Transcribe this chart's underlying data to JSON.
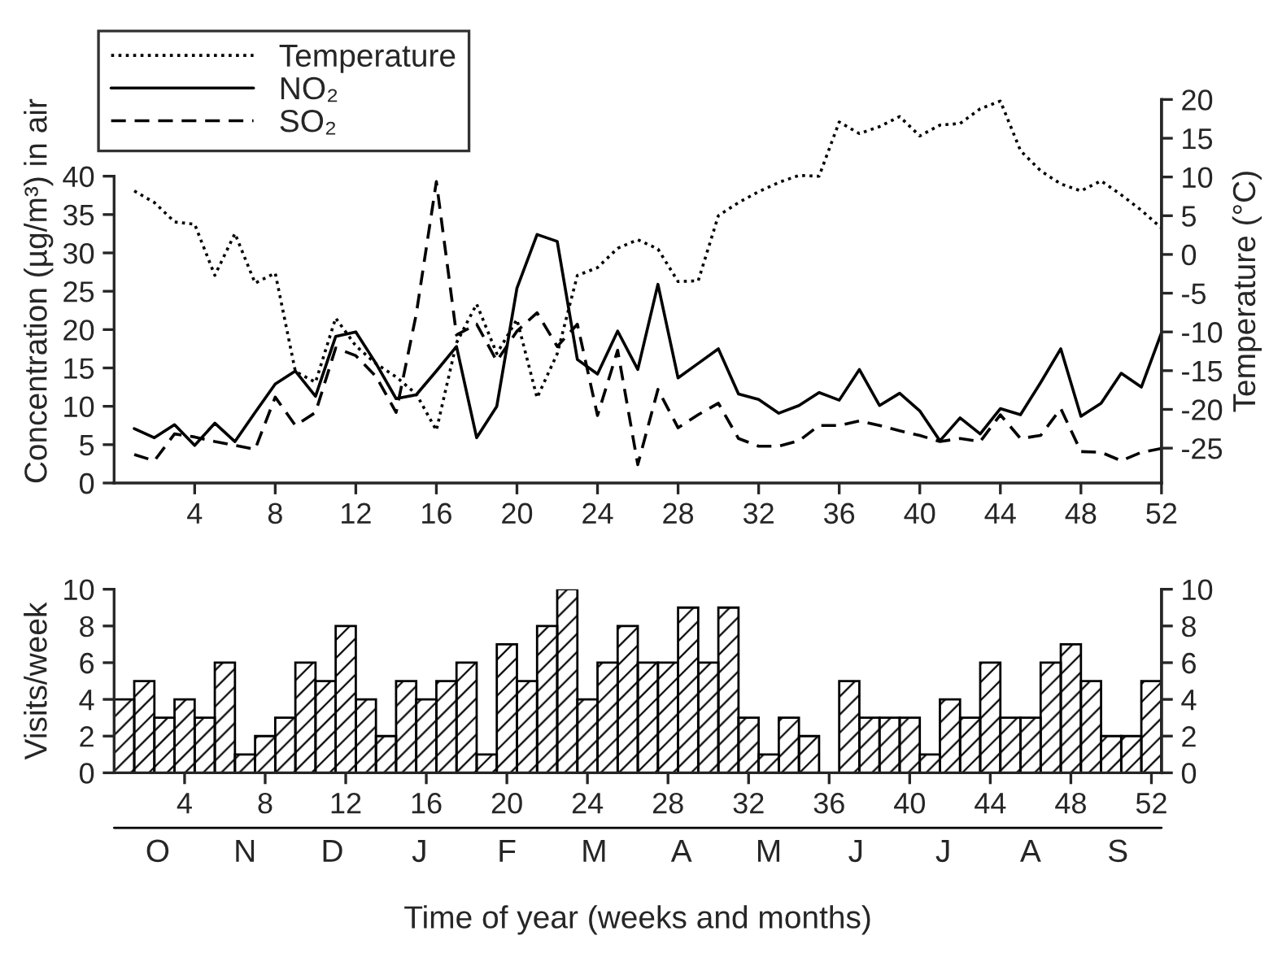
{
  "chart_data": [
    {
      "type": "line",
      "ylabel": "Concentration (µg/m³) in air",
      "y2label": "Temperature (°C)",
      "x": [
        1,
        2,
        3,
        4,
        5,
        6,
        7,
        8,
        9,
        10,
        11,
        12,
        13,
        14,
        15,
        16,
        17,
        18,
        19,
        20,
        21,
        22,
        23,
        24,
        25,
        26,
        27,
        28,
        29,
        30,
        31,
        32,
        33,
        34,
        35,
        36,
        37,
        38,
        39,
        40,
        41,
        42,
        43,
        44,
        45,
        46,
        47,
        48,
        49,
        50,
        51,
        52
      ],
      "series": [
        {
          "name": "Temperature",
          "color": "#000000",
          "axis": "y2",
          "line_style": "dotted",
          "values": [
            8.2,
            6.7,
            4.2,
            3.9,
            -2.7,
            2.7,
            -3.7,
            -2.4,
            -15.1,
            -16.5,
            -8.2,
            -11.8,
            -14.1,
            -15.8,
            -18.0,
            -22.7,
            -11.4,
            -6.4,
            -12.8,
            -8.4,
            -18.5,
            -12.8,
            -2.7,
            -1.7,
            0.8,
            1.9,
            0.7,
            -3.5,
            -3.4,
            5.0,
            6.7,
            8.1,
            9.3,
            10.2,
            10.1,
            17.1,
            15.6,
            16.5,
            17.8,
            15.3,
            16.7,
            16.9,
            18.8,
            19.8,
            13.4,
            10.8,
            9.1,
            8.2,
            9.5,
            7.7,
            5.7,
            3.4
          ]
        },
        {
          "name": "NO₂",
          "color": "#000000",
          "line_style": "solid",
          "values": [
            7.1,
            5.9,
            7.6,
            4.9,
            7.8,
            5.4,
            9.2,
            12.9,
            14.6,
            11.3,
            19.1,
            19.7,
            15.6,
            11.0,
            11.5,
            14.6,
            17.8,
            5.9,
            10.0,
            25.4,
            32.4,
            31.5,
            16.1,
            14.2,
            19.8,
            14.8,
            25.9,
            13.7,
            15.6,
            17.5,
            11.6,
            10.9,
            9.1,
            10.1,
            11.8,
            10.8,
            14.8,
            10.1,
            11.7,
            9.4,
            5.5,
            8.5,
            6.4,
            9.7,
            8.9,
            13.1,
            17.5,
            8.7,
            10.4,
            14.3,
            12.5,
            19.6
          ]
        },
        {
          "name": "SO₂",
          "color": "#000000",
          "line_style": "dashed",
          "values": [
            3.7,
            2.9,
            6.4,
            6.0,
            5.4,
            4.9,
            4.4,
            11.2,
            7.5,
            9.2,
            17.6,
            16.6,
            13.9,
            9.2,
            22.0,
            39.3,
            19.3,
            20.7,
            15.9,
            19.8,
            22.2,
            17.8,
            20.7,
            8.8,
            17.3,
            2.4,
            12.2,
            7.2,
            8.9,
            10.4,
            5.8,
            4.8,
            4.8,
            5.5,
            7.5,
            7.5,
            8.1,
            7.5,
            6.8,
            6.2,
            5.4,
            5.8,
            5.4,
            8.9,
            5.8,
            6.2,
            9.7,
            4.1,
            4.0,
            2.9,
            4.0,
            4.5
          ]
        }
      ],
      "xlim": [
        0,
        52
      ],
      "xticks": [
        4,
        8,
        12,
        16,
        20,
        24,
        28,
        32,
        36,
        40,
        44,
        48,
        52
      ],
      "ylim": [
        0,
        50
      ],
      "yticks": [
        0,
        5,
        10,
        15,
        20,
        25,
        30,
        35,
        40
      ],
      "y2lim": [
        -29.5,
        20
      ],
      "y2ticks": [
        -25,
        -20,
        -15,
        -10,
        -5,
        0,
        5,
        10,
        15,
        20
      ],
      "legend": "top left",
      "grid": false,
      "marker": "none"
    },
    {
      "type": "bar",
      "ylabel": "Visits/week",
      "xlabel": "Time of year (weeks and months)",
      "x": [
        1,
        2,
        3,
        4,
        5,
        6,
        7,
        8,
        9,
        10,
        11,
        12,
        13,
        14,
        15,
        16,
        17,
        18,
        19,
        20,
        21,
        22,
        23,
        24,
        25,
        26,
        27,
        28,
        29,
        30,
        31,
        32,
        33,
        34,
        35,
        36,
        37,
        38,
        39,
        40,
        41,
        42,
        43,
        44,
        45,
        46,
        47,
        48,
        49,
        50,
        51,
        52
      ],
      "values": [
        4,
        5,
        3,
        4,
        3,
        6,
        1,
        2,
        3,
        6,
        5,
        8,
        4,
        2,
        5,
        4,
        5,
        6,
        1,
        7,
        5,
        8,
        10,
        4,
        6,
        8,
        6,
        6,
        9,
        6,
        9,
        3,
        1,
        3,
        2,
        0,
        5,
        3,
        3,
        3,
        1,
        4,
        3,
        6,
        3,
        3,
        6,
        7,
        5,
        2,
        2,
        5
      ],
      "color": "#000000",
      "xlim": [
        0.5,
        52.5
      ],
      "xticks": [
        4,
        8,
        12,
        16,
        20,
        24,
        28,
        32,
        36,
        40,
        44,
        48,
        52
      ],
      "ylim": [
        0,
        10
      ],
      "yticks": [
        0,
        2,
        4,
        6,
        8,
        10
      ],
      "y2lim": [
        0,
        10
      ],
      "y2ticks": [
        0,
        2,
        4,
        6,
        8,
        10
      ],
      "annotations": [
        "O",
        "N",
        "D",
        "J",
        "F",
        "M",
        "A",
        "M",
        "J",
        "J",
        "A",
        "S"
      ],
      "grid": false
    }
  ]
}
